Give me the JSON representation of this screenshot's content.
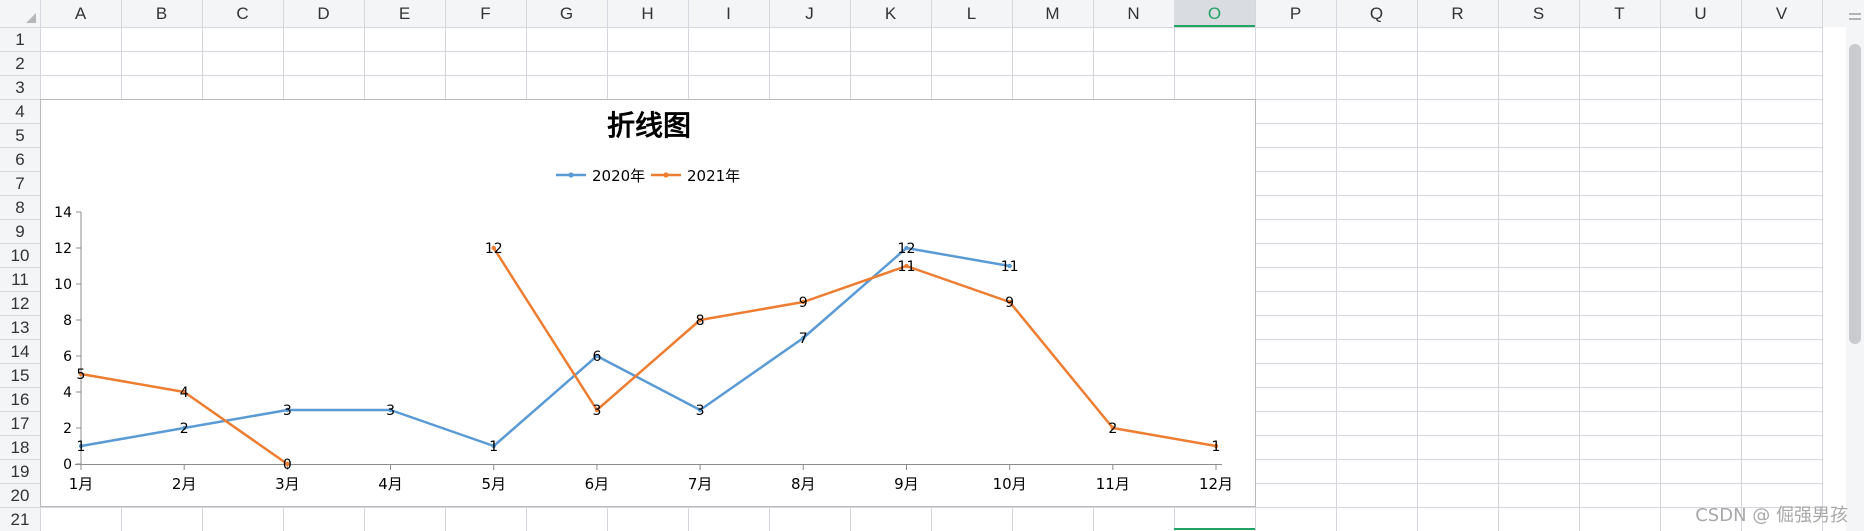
{
  "spreadsheet": {
    "columns": [
      "A",
      "B",
      "C",
      "D",
      "E",
      "F",
      "G",
      "H",
      "I",
      "J",
      "K",
      "L",
      "M",
      "N",
      "O",
      "P",
      "Q",
      "R",
      "S",
      "T",
      "U",
      "V"
    ],
    "rows": [
      "1",
      "2",
      "3",
      "4",
      "5",
      "6",
      "7",
      "8",
      "9",
      "10",
      "11",
      "12",
      "13",
      "14",
      "15",
      "16",
      "17",
      "18",
      "19",
      "20",
      "21"
    ],
    "selected_column": "O"
  },
  "chart_data": {
    "type": "line",
    "title": "折线图",
    "categories": [
      "1月",
      "2月",
      "3月",
      "4月",
      "5月",
      "6月",
      "7月",
      "8月",
      "9月",
      "10月",
      "11月",
      "12月"
    ],
    "series": [
      {
        "name": "2020年",
        "color": "#5b9bd5",
        "values": [
          1,
          2,
          3,
          3,
          1,
          6,
          3,
          7,
          12,
          11,
          null,
          null
        ]
      },
      {
        "name": "2021年",
        "color": "#ed7d31",
        "values": [
          5,
          4,
          0,
          null,
          12,
          3,
          8,
          9,
          11,
          9,
          2,
          1
        ]
      }
    ],
    "ylim": [
      0,
      14
    ],
    "yticks": [
      0,
      2,
      4,
      6,
      8,
      10,
      12,
      14
    ],
    "legend_position": "top",
    "data_labels": true
  },
  "watermark": "CSDN @ 倔强男孩"
}
